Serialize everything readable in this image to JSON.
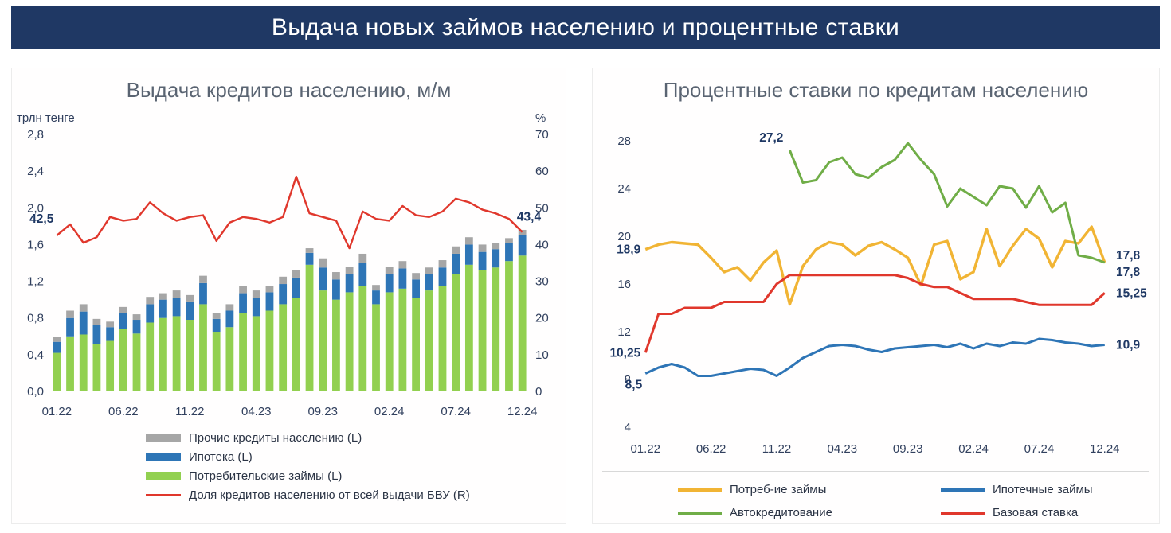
{
  "banner": {
    "title": "Выдача новых займов населению и процентные ставки"
  },
  "panels": {
    "left": {
      "title": "Выдача кредитов населению, м/м",
      "unit_left": "трлн тенге",
      "unit_right": "%",
      "legend": [
        {
          "label": "Прочие кредиты населению (L)",
          "color": "#a6a6a6",
          "shape": "rect",
          "icon": "other-loans-swatch"
        },
        {
          "label": "Ипотека (L)",
          "color": "#2e75b6",
          "shape": "rect",
          "icon": "mortgage-swatch"
        },
        {
          "label": "Потребительские займы (L)",
          "color": "#92d050",
          "shape": "rect",
          "icon": "consumer-loans-swatch"
        },
        {
          "label": "Доля кредитов населению от всей выдачи БВУ (R)",
          "color": "#e0372c",
          "shape": "line",
          "icon": "share-line-swatch"
        }
      ]
    },
    "right": {
      "title": "Процентные ставки по кредитам населению",
      "legend": [
        {
          "label": "Потреб-ие займы",
          "color": "#f1b434",
          "shape": "line",
          "icon": "consumer-rate-swatch"
        },
        {
          "label": "Ипотечные займы",
          "color": "#2e75b6",
          "shape": "line",
          "icon": "mortgage-rate-swatch"
        },
        {
          "label": "Автокредитование",
          "color": "#70ad47",
          "shape": "line",
          "icon": "auto-rate-swatch"
        },
        {
          "label": "Базовая ставка",
          "color": "#e0372c",
          "shape": "line",
          "icon": "base-rate-swatch"
        }
      ]
    }
  },
  "colors": {
    "banner_bg": "#1f3864",
    "title_text": "#5a6472",
    "axis_text": "#31405e",
    "annotation_text": "#1f3864",
    "consumer_bar": "#92d050",
    "mortgage_bar": "#2e75b6",
    "other_bar": "#a6a6a6",
    "share_line": "#e0372c",
    "consumer_rate": "#f1b434",
    "mortgage_rate": "#2e75b6",
    "auto_rate": "#70ad47",
    "base_rate": "#e0372c"
  },
  "chart_data": [
    {
      "type": "bar",
      "subtype": "stacked-bars-with-line",
      "title": "Выдача кредитов населению, м/м",
      "x": [
        "01.22",
        "02.22",
        "03.22",
        "04.22",
        "05.22",
        "06.22",
        "07.22",
        "08.22",
        "09.22",
        "10.22",
        "11.22",
        "12.22",
        "01.23",
        "02.23",
        "03.23",
        "04.23",
        "05.23",
        "06.23",
        "07.23",
        "08.23",
        "09.23",
        "10.23",
        "11.23",
        "12.23",
        "01.24",
        "02.24",
        "03.24",
        "04.24",
        "05.24",
        "06.24",
        "07.24",
        "08.24",
        "09.24",
        "10.24",
        "11.24",
        "12.24"
      ],
      "x_tick_labels": [
        "01.22",
        "06.22",
        "11.22",
        "04.23",
        "09.23",
        "02.24",
        "07.24",
        "12.24"
      ],
      "x_tick_indices": [
        0,
        5,
        10,
        15,
        20,
        25,
        30,
        35
      ],
      "ylabel_left": "трлн тенге",
      "ylim_left": [
        0,
        2.8
      ],
      "yticks_left": [
        0,
        0.4,
        0.8,
        1.2,
        1.6,
        2.0,
        2.4,
        2.8
      ],
      "ytick_labels_left": [
        "0,0",
        "0,4",
        "0,8",
        "1,2",
        "1,6",
        "2,0",
        "2,4",
        "2,8"
      ],
      "ylabel_right": "%",
      "ylim_right": [
        0,
        70
      ],
      "yticks_right": [
        0,
        10,
        20,
        30,
        40,
        50,
        60,
        70
      ],
      "grid": false,
      "legend_position": "bottom",
      "series": [
        {
          "name": "Потребительские займы (L)",
          "type": "bar-stack",
          "axis": "left",
          "color": "#92d050",
          "values": [
            0.42,
            0.6,
            0.62,
            0.52,
            0.55,
            0.68,
            0.63,
            0.75,
            0.8,
            0.82,
            0.78,
            0.95,
            0.65,
            0.7,
            0.85,
            0.82,
            0.88,
            0.95,
            1.02,
            1.38,
            1.1,
            1.0,
            1.08,
            1.15,
            0.95,
            1.08,
            1.12,
            1.02,
            1.1,
            1.15,
            1.28,
            1.38,
            1.32,
            1.35,
            1.42,
            1.48
          ]
        },
        {
          "name": "Ипотека (L)",
          "type": "bar-stack",
          "axis": "left",
          "color": "#2e75b6",
          "values": [
            0.12,
            0.2,
            0.25,
            0.2,
            0.15,
            0.17,
            0.15,
            0.2,
            0.2,
            0.2,
            0.2,
            0.23,
            0.14,
            0.18,
            0.22,
            0.2,
            0.2,
            0.22,
            0.22,
            0.13,
            0.25,
            0.22,
            0.2,
            0.25,
            0.15,
            0.2,
            0.22,
            0.2,
            0.18,
            0.2,
            0.22,
            0.22,
            0.2,
            0.2,
            0.2,
            0.22
          ]
        },
        {
          "name": "Прочие кредиты населению (L)",
          "type": "bar-stack",
          "axis": "left",
          "color": "#a6a6a6",
          "values": [
            0.05,
            0.08,
            0.08,
            0.07,
            0.06,
            0.07,
            0.06,
            0.08,
            0.07,
            0.08,
            0.07,
            0.08,
            0.06,
            0.07,
            0.08,
            0.08,
            0.07,
            0.08,
            0.08,
            0.05,
            0.1,
            0.08,
            0.08,
            0.1,
            0.06,
            0.08,
            0.08,
            0.07,
            0.07,
            0.08,
            0.08,
            0.08,
            0.08,
            0.07,
            0.05,
            0.06
          ]
        },
        {
          "name": "Доля кредитов населению от всей выдачи БВУ (R)",
          "type": "line",
          "axis": "right",
          "color": "#e0372c",
          "values": [
            42.5,
            45.5,
            40.5,
            42,
            47.5,
            46.5,
            47,
            51.5,
            48.5,
            46.5,
            47.5,
            48,
            41,
            46,
            47.5,
            47,
            46,
            47.5,
            58.5,
            48.5,
            47.5,
            46.5,
            39,
            49,
            47,
            46.5,
            50.5,
            48,
            47.5,
            49,
            52.5,
            51.5,
            49.5,
            48.5,
            47,
            43.4
          ],
          "first_label": "42,5",
          "last_label": "43,4"
        }
      ]
    },
    {
      "type": "line",
      "title": "Процентные ставки по кредитам населению",
      "x": [
        "01.22",
        "02.22",
        "03.22",
        "04.22",
        "05.22",
        "06.22",
        "07.22",
        "08.22",
        "09.22",
        "10.22",
        "11.22",
        "12.22",
        "01.23",
        "02.23",
        "03.23",
        "04.23",
        "05.23",
        "06.23",
        "07.23",
        "08.23",
        "09.23",
        "10.23",
        "11.23",
        "12.23",
        "01.24",
        "02.24",
        "03.24",
        "04.24",
        "05.24",
        "06.24",
        "07.24",
        "08.24",
        "09.24",
        "10.24",
        "11.24",
        "12.24"
      ],
      "x_tick_labels": [
        "01.22",
        "06.22",
        "11.22",
        "04.23",
        "09.23",
        "02.24",
        "07.24",
        "12.24"
      ],
      "x_tick_indices": [
        0,
        5,
        10,
        15,
        20,
        25,
        30,
        35
      ],
      "ylim": [
        4,
        28
      ],
      "yticks": [
        4,
        8,
        12,
        16,
        20,
        24,
        28
      ],
      "grid": false,
      "legend_position": "bottom",
      "series": [
        {
          "name": "Потреб-ие займы",
          "color": "#f1b434",
          "values": [
            18.9,
            19.3,
            19.5,
            19.4,
            19.3,
            18.2,
            17.0,
            17.4,
            16.3,
            17.8,
            18.8,
            14.3,
            17.5,
            18.9,
            19.5,
            19.3,
            18.4,
            19.2,
            19.5,
            18.9,
            18.2,
            15.9,
            19.3,
            19.6,
            16.4,
            17.0,
            20.6,
            17.5,
            19.2,
            20.6,
            19.8,
            17.4,
            19.6,
            19.4,
            20.8,
            17.8
          ],
          "first_label": "18,9",
          "last_label": "17,8"
        },
        {
          "name": "Ипотечные займы",
          "color": "#2e75b6",
          "values": [
            8.5,
            9.0,
            9.3,
            9.0,
            8.3,
            8.3,
            8.5,
            8.7,
            8.9,
            8.8,
            8.3,
            9.0,
            9.8,
            10.3,
            10.8,
            10.9,
            10.8,
            10.5,
            10.3,
            10.6,
            10.7,
            10.8,
            10.9,
            10.7,
            11.0,
            10.6,
            11.0,
            10.8,
            11.1,
            11.0,
            11.4,
            11.3,
            11.1,
            11.0,
            10.8,
            10.9
          ],
          "first_label": "8,5",
          "last_label": "10,9"
        },
        {
          "name": "Автокредитование",
          "color": "#70ad47",
          "values": [
            null,
            null,
            null,
            null,
            null,
            null,
            null,
            null,
            null,
            null,
            null,
            27.2,
            24.5,
            24.7,
            26.2,
            26.6,
            25.2,
            24.9,
            25.8,
            26.4,
            27.8,
            26.4,
            25.2,
            22.5,
            24.0,
            23.3,
            22.6,
            24.2,
            24.0,
            22.4,
            24.2,
            22.0,
            22.8,
            18.4,
            18.2,
            17.8
          ],
          "first_label": "27,2",
          "last_label": "17,8"
        },
        {
          "name": "Базовая ставка",
          "color": "#e0372c",
          "values": [
            10.25,
            13.5,
            13.5,
            14.0,
            14.0,
            14.0,
            14.5,
            14.5,
            14.5,
            14.5,
            16.0,
            16.75,
            16.75,
            16.75,
            16.75,
            16.75,
            16.75,
            16.75,
            16.75,
            16.75,
            16.5,
            16.0,
            15.75,
            15.75,
            15.25,
            14.75,
            14.75,
            14.75,
            14.75,
            14.5,
            14.25,
            14.25,
            14.25,
            14.25,
            14.25,
            15.25
          ],
          "first_label": "10,25",
          "last_label": "15,25"
        }
      ]
    }
  ]
}
